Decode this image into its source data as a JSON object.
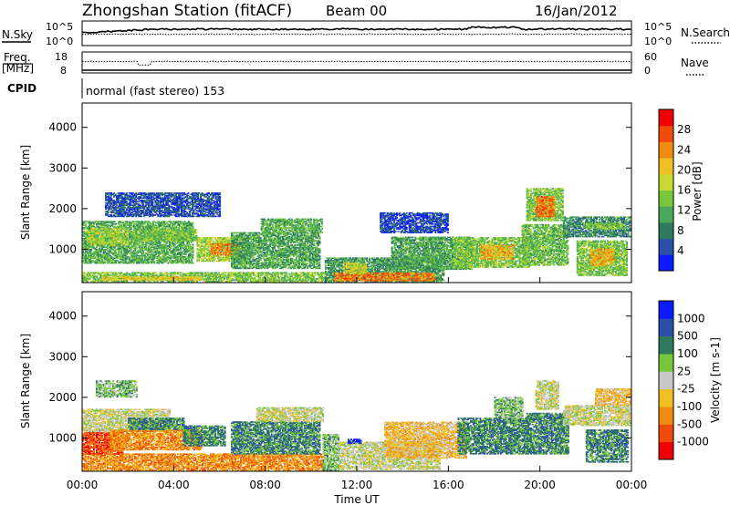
{
  "header": {
    "station": "Zhongshan Station (fitACF)",
    "beam": "Beam 00",
    "date": "16/Jan/2012"
  },
  "top_panels": {
    "nsky_label": "N.Sky",
    "nsearch_label": "N.Search",
    "nsky_ticks": [
      "10^5",
      "10^0"
    ],
    "nsearch_ticks": [
      "10^5",
      "10^0"
    ],
    "freq_label": "Freq.",
    "freq_unit": "[MHz]",
    "freq_ticks": [
      "18",
      "8"
    ],
    "nave_label": "Nave",
    "nave_ticks": [
      "60",
      "0"
    ],
    "cpid_label": "CPID",
    "cpid_text": "normal (fast stereo) 153"
  },
  "chart_data": [
    {
      "type": "heatmap",
      "quantity": "power",
      "ylabel": "Slant Range [km]",
      "xlabel": "Time UT",
      "x_ticks": [
        "00:00",
        "04:00",
        "08:00",
        "12:00",
        "16:00",
        "20:00",
        "00:00"
      ],
      "xlim_hours": [
        0,
        24
      ],
      "ylim_km": [
        180,
        4600
      ],
      "y_ticks": [
        1000,
        2000,
        3000,
        4000
      ],
      "colorbar": {
        "label": "Power [dB]",
        "ticks": [
          4,
          8,
          12,
          16,
          20,
          24,
          28
        ],
        "range": [
          0,
          32
        ],
        "colors": [
          "#0a1cff",
          "#2c4fa8",
          "#2e7a5c",
          "#4aa85a",
          "#76c83a",
          "#c8d830",
          "#f0c020",
          "#f08a10",
          "#f04a0a",
          "#f00000"
        ]
      },
      "regions": [
        {
          "t": [
            0.0,
            10.6
          ],
          "r": [
            200,
            420
          ],
          "v": 14
        },
        {
          "t": [
            0.8,
            5.2
          ],
          "r": [
            240,
            330
          ],
          "v": 20
        },
        {
          "t": [
            0.0,
            4.8
          ],
          "r": [
            650,
            1700
          ],
          "v": 12
        },
        {
          "t": [
            0.2,
            2.0
          ],
          "r": [
            1100,
            1500
          ],
          "v": 16
        },
        {
          "t": [
            2.2,
            5.0
          ],
          "r": [
            1200,
            1500
          ],
          "v": 14
        },
        {
          "t": [
            5.0,
            7.2
          ],
          "r": [
            700,
            1300
          ],
          "v": 16
        },
        {
          "t": [
            5.6,
            6.8
          ],
          "r": [
            850,
            1150
          ],
          "v": 25
        },
        {
          "t": [
            6.5,
            10.4
          ],
          "r": [
            520,
            1400
          ],
          "v": 11
        },
        {
          "t": [
            7.8,
            10.5
          ],
          "r": [
            1400,
            1750
          ],
          "v": 12
        },
        {
          "t": [
            10.6,
            15.8
          ],
          "r": [
            200,
            800
          ],
          "v": 10
        },
        {
          "t": [
            11.0,
            15.4
          ],
          "r": [
            220,
            420
          ],
          "v": 25
        },
        {
          "t": [
            11.4,
            12.4
          ],
          "r": [
            400,
            650
          ],
          "v": 18
        },
        {
          "t": [
            13.5,
            17.0
          ],
          "r": [
            500,
            1300
          ],
          "v": 11
        },
        {
          "t": [
            16.2,
            19.5
          ],
          "r": [
            550,
            1300
          ],
          "v": 14
        },
        {
          "t": [
            17.4,
            18.8
          ],
          "r": [
            750,
            1100
          ],
          "v": 22
        },
        {
          "t": [
            19.4,
            21.0
          ],
          "r": [
            1700,
            2500
          ],
          "v": 14
        },
        {
          "t": [
            19.8,
            20.6
          ],
          "r": [
            1800,
            2300
          ],
          "v": 25
        },
        {
          "t": [
            19.2,
            21.2
          ],
          "r": [
            600,
            1600
          ],
          "v": 13
        },
        {
          "t": [
            21.0,
            24.0
          ],
          "r": [
            1300,
            1800
          ],
          "v": 9
        },
        {
          "t": [
            22.0,
            23.6
          ],
          "r": [
            1500,
            1650
          ],
          "v": 15
        },
        {
          "t": [
            21.6,
            23.8
          ],
          "r": [
            350,
            1200
          ],
          "v": 14
        },
        {
          "t": [
            22.2,
            23.2
          ],
          "r": [
            600,
            1000
          ],
          "v": 22
        },
        {
          "t": [
            1.0,
            6.0
          ],
          "r": [
            1800,
            2400
          ],
          "v": 5
        },
        {
          "t": [
            13.0,
            16.0
          ],
          "r": [
            1400,
            1900
          ],
          "v": 4
        }
      ]
    },
    {
      "type": "heatmap",
      "quantity": "velocity",
      "ylabel": "Slant Range [km]",
      "xlabel": "Time UT",
      "x_ticks": [
        "00:00",
        "04:00",
        "08:00",
        "12:00",
        "16:00",
        "20:00",
        "00:00"
      ],
      "xlim_hours": [
        0,
        24
      ],
      "ylim_km": [
        180,
        4600
      ],
      "y_ticks": [
        1000,
        2000,
        3000,
        4000
      ],
      "colorbar": {
        "label": "Velocity [m s-1]",
        "ticks": [
          1000,
          500,
          100,
          25,
          -25,
          -100,
          -500,
          -1000
        ],
        "colors": [
          "#f00000",
          "#f04a0a",
          "#f08a10",
          "#f0c020",
          "#c8c8c8",
          "#76c83a",
          "#2e7a5c",
          "#2c4fa8",
          "#0a1cff"
        ]
      },
      "regions": [
        {
          "t": [
            0.0,
            10.6
          ],
          "r": [
            200,
            600
          ],
          "v": 2
        },
        {
          "t": [
            0.0,
            1.8
          ],
          "r": [
            600,
            1200
          ],
          "v": 1
        },
        {
          "t": [
            0.0,
            3.8
          ],
          "r": [
            1150,
            1700
          ],
          "v": 4
        },
        {
          "t": [
            1.2,
            5.2
          ],
          "r": [
            700,
            1200
          ],
          "v": 2
        },
        {
          "t": [
            2.0,
            4.4
          ],
          "r": [
            1200,
            1500
          ],
          "v": 6
        },
        {
          "t": [
            4.4,
            6.2
          ],
          "r": [
            800,
            1300
          ],
          "v": 6
        },
        {
          "t": [
            6.5,
            10.4
          ],
          "r": [
            600,
            1400
          ],
          "v": 6
        },
        {
          "t": [
            7.6,
            10.5
          ],
          "r": [
            1400,
            1750
          ],
          "v": 4
        },
        {
          "t": [
            10.5,
            11.2
          ],
          "r": [
            200,
            1100
          ],
          "v": 5
        },
        {
          "t": [
            11.2,
            15.6
          ],
          "r": [
            220,
            900
          ],
          "v": 4
        },
        {
          "t": [
            11.6,
            12.2
          ],
          "r": [
            860,
            960
          ],
          "v": 8
        },
        {
          "t": [
            13.2,
            16.8
          ],
          "r": [
            500,
            1400
          ],
          "v": 3
        },
        {
          "t": [
            16.4,
            19.4
          ],
          "r": [
            600,
            1500
          ],
          "v": 6
        },
        {
          "t": [
            18.0,
            19.2
          ],
          "r": [
            1500,
            2000
          ],
          "v": 5
        },
        {
          "t": [
            19.4,
            21.2
          ],
          "r": [
            600,
            1600
          ],
          "v": 6
        },
        {
          "t": [
            19.8,
            20.8
          ],
          "r": [
            1700,
            2400
          ],
          "v": 4
        },
        {
          "t": [
            21.0,
            24.0
          ],
          "r": [
            1300,
            1800
          ],
          "v": 4
        },
        {
          "t": [
            22.0,
            23.8
          ],
          "r": [
            400,
            1200
          ],
          "v": 6
        },
        {
          "t": [
            22.4,
            24.0
          ],
          "r": [
            1800,
            2200
          ],
          "v": 3
        },
        {
          "t": [
            0.6,
            2.4
          ],
          "r": [
            2000,
            2400
          ],
          "v": 5
        }
      ]
    }
  ]
}
